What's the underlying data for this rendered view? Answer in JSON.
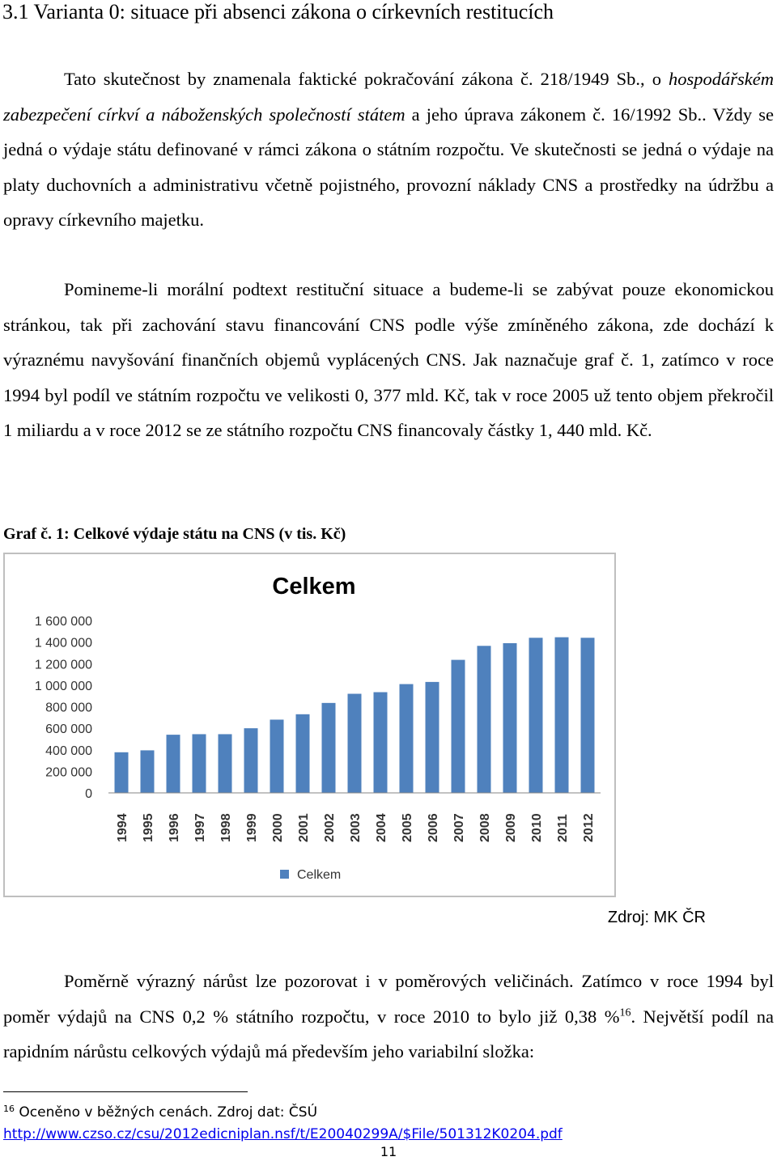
{
  "section": {
    "heading": "3.1 Varianta 0: situace při absenci zákona o církevních restitucích"
  },
  "paragraph1": {
    "part1": "Tato skutečnost by znamenala faktické pokračování zákona č. 218/1949 Sb., o ",
    "italic": "hospodářském zabezpečení církví a náboženských společností státem",
    "part2": " a jeho úprava zákonem č. 16/1992 Sb.. Vždy se jedná o výdaje státu definované v rámci zákona o státním rozpočtu. Ve skutečnosti se jedná o výdaje na platy duchovních a administrativu včetně pojistného, provozní náklady CNS a prostředky na údržbu a opravy církevního majetku."
  },
  "paragraph2": {
    "text": "Pomineme-li morální podtext restituční situace a budeme-li se zabývat pouze ekonomickou stránkou, tak při zachování stavu financování CNS podle výše zmíněného zákona, zde dochází k výraznému navyšování finančních objemů vyplácených CNS. Jak naznačuje graf č. 1, zatímco v roce 1994 byl podíl ve státním rozpočtu ve velikosti 0, 377 mld. Kč, tak v roce 2005 už tento objem překročil 1 miliardu a v roce 2012 se ze státního rozpočtu CNS financovaly částky 1, 440 mld. Kč."
  },
  "figure": {
    "caption": "Graf č. 1: Celkové výdaje státu na CNS (v tis. Kč)",
    "source": "Zdroj: MK ČR"
  },
  "chart_data": {
    "type": "bar",
    "title": "Celkem",
    "categories": [
      "1994",
      "1995",
      "1996",
      "1997",
      "1998",
      "1999",
      "2000",
      "2001",
      "2002",
      "2003",
      "2004",
      "2005",
      "2006",
      "2007",
      "2008",
      "2009",
      "2010",
      "2011",
      "2012"
    ],
    "series": [
      {
        "name": "Celkem",
        "color": "#4f81bd",
        "values": [
          377000,
          395000,
          540000,
          545000,
          545000,
          600000,
          680000,
          730000,
          835000,
          920000,
          935000,
          1010000,
          1030000,
          1235000,
          1365000,
          1390000,
          1440000,
          1445000,
          1440000
        ]
      }
    ],
    "yticks": [
      "0",
      "200 000",
      "400 000",
      "600 000",
      "800 000",
      "1 000 000",
      "1 200 000",
      "1 400 000",
      "1 600 000"
    ],
    "ylim": [
      0,
      1600000
    ],
    "ystep": 200000,
    "grid": false,
    "legend": "bottom"
  },
  "paragraph3": {
    "part1": "Poměrně výrazný nárůst lze pozorovat i v poměrových veličinách. Zatímco v roce 1994 byl poměr výdajů na CNS 0,2 % státního rozpočtu, v roce 2010 to bylo již 0,38 %",
    "footnote_ref": "16",
    "part2": ". Největší podíl na rapidním nárůstu celkových výdajů má především jeho variabilní složka:"
  },
  "footnote": {
    "number": "16",
    "text": " Oceněno v běžných cenách. Zdroj dat: ČSÚ",
    "link": "http://www.czso.cz/csu/2012edicniplan.nsf/t/E20040299A/$File/501312K0204.pdf"
  },
  "page": {
    "number": "11"
  }
}
